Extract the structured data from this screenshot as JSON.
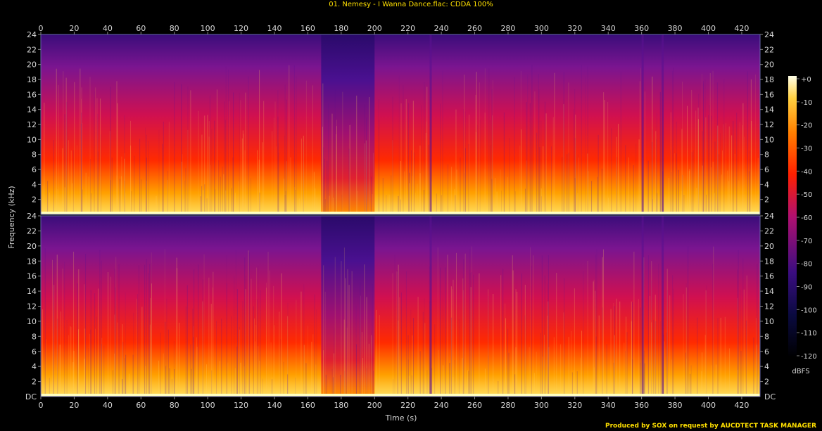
{
  "title": "01. Nemesy - I Wanna Dance.flac: CDDA 100%",
  "credit": "Produced by SOX on request by AUCDTECT TASK MANAGER",
  "chart_data": {
    "type": "heatmap",
    "subtype": "spectrogram",
    "channels": 2,
    "xlabel": "Time (s)",
    "ylabel": "Frequency (kHz)",
    "xlim": [
      0,
      431
    ],
    "x_ticks": [
      0,
      20,
      40,
      60,
      80,
      100,
      120,
      140,
      160,
      180,
      200,
      220,
      240,
      260,
      280,
      300,
      320,
      340,
      360,
      380,
      400,
      420
    ],
    "ylim": [
      0,
      24
    ],
    "y_ticks": [
      2,
      4,
      6,
      8,
      10,
      12,
      14,
      16,
      18,
      20,
      22,
      24
    ],
    "y_tick_labels": [
      "2",
      "4",
      "6",
      "8",
      "10",
      "12",
      "14",
      "16",
      "18",
      "20",
      "22",
      "24"
    ],
    "y_zero_label": "DC",
    "colorbar": {
      "label": "dBFS",
      "range": [
        -120,
        0
      ],
      "ticks": [
        "+0",
        "-10",
        "-20",
        "-30",
        "-40",
        "-50",
        "-60",
        "-70",
        "-80",
        "-90",
        "-100",
        "-110",
        "-120"
      ]
    },
    "colors": {
      "low": "#000000",
      "mid_low": "#3a0d80",
      "mid": "#c0105a",
      "mid_high": "#ff3000",
      "high": "#ffb000",
      "peak": "#ffffd8"
    },
    "segments": [
      {
        "start": 0,
        "end": 168,
        "character": "full-band"
      },
      {
        "start": 168,
        "end": 200,
        "character": "breakdown, weaker upper band"
      },
      {
        "start": 200,
        "end": 431,
        "character": "full-band with dropouts near 233 s, 360 s, 372 s"
      }
    ]
  }
}
